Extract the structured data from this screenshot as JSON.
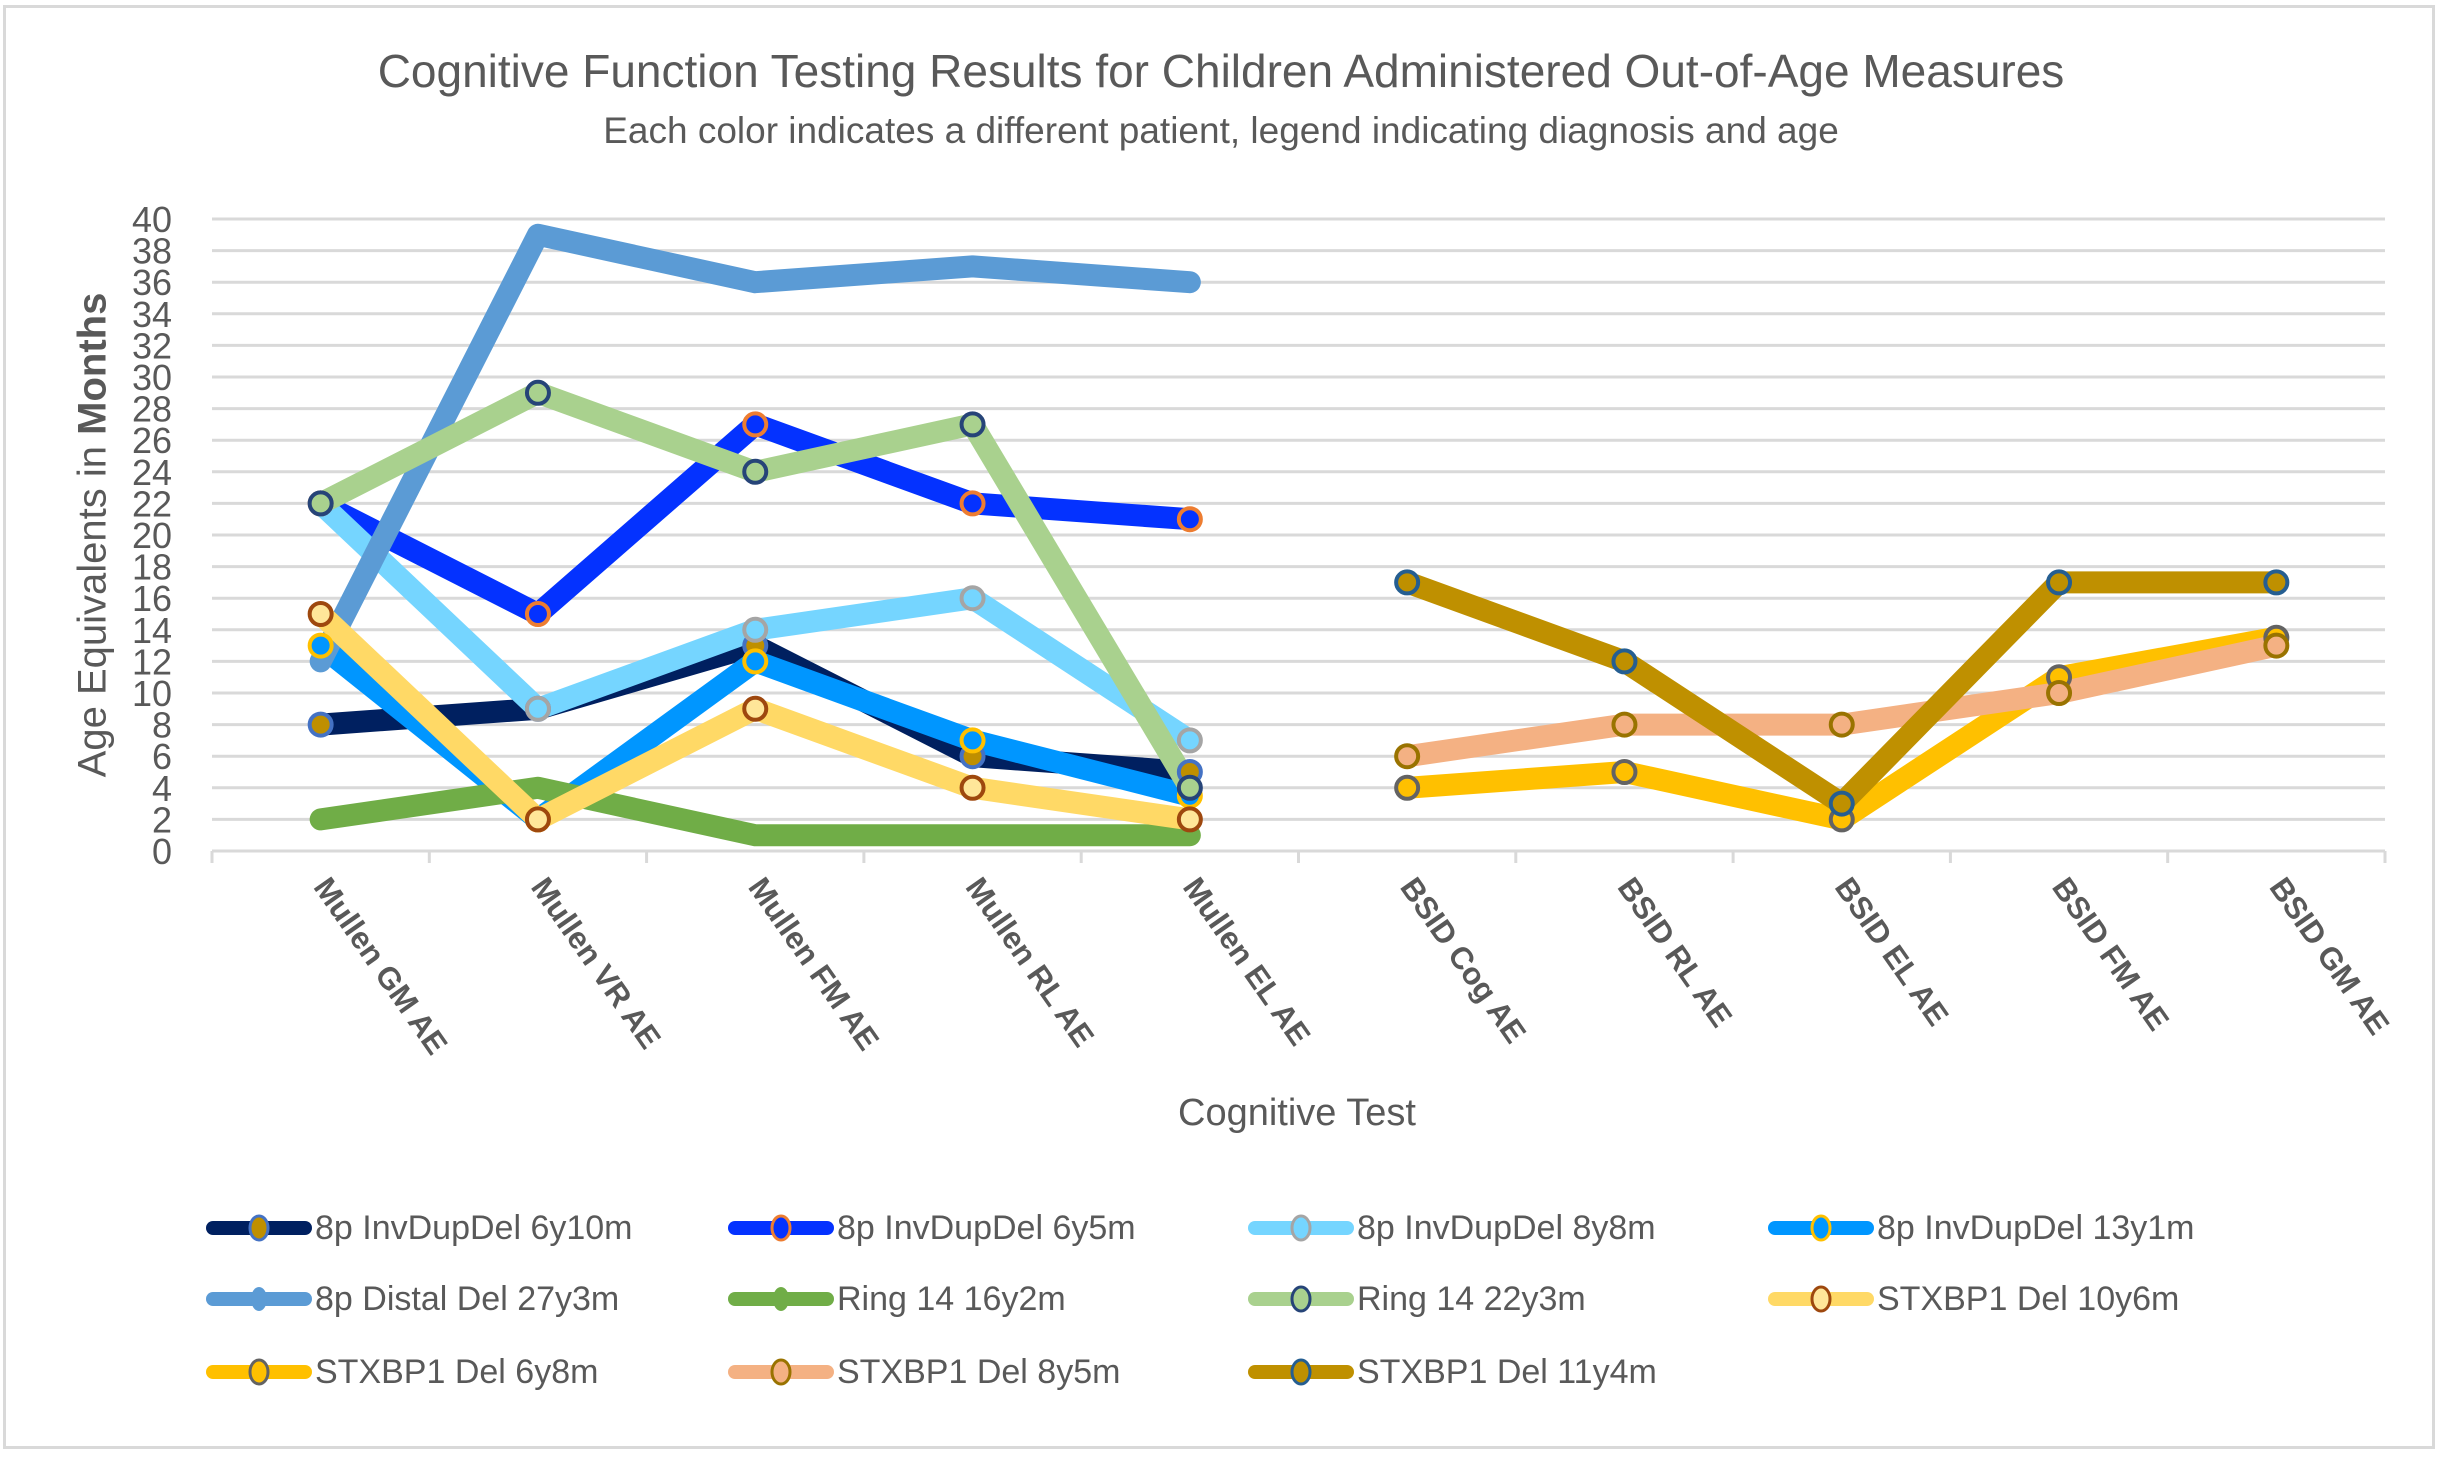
{
  "chart_data": {
    "type": "line",
    "title": "Cognitive Function Testing Results for Children Administered Out-of-Age Measures",
    "subtitle": "Each color indicates a different patient, legend indicating diagnosis and age",
    "xlabel": "Cognitive Test",
    "ylabel_prefix": "Age Equivalents in ",
    "ylabel_bold": "Months",
    "ylim": [
      0,
      40
    ],
    "yticks": [
      "0",
      "2",
      "4",
      "6",
      "8",
      "10",
      "12",
      "14",
      "16",
      "18",
      "20",
      "22",
      "24",
      "26",
      "28",
      "30",
      "32",
      "34",
      "36",
      "38",
      "40"
    ],
    "ytick_step": 2,
    "grid": true,
    "legend_position": "bottom",
    "categories": [
      "Mullen GM AE",
      "Mullen VR AE",
      "Mullen FM AE",
      "Mullen RL AE",
      "Mullen EL AE",
      "BSID Cog AE",
      "BSID RL AE",
      "BSID EL AE",
      "BSID FM AE",
      "BSID GM AE"
    ],
    "series": [
      {
        "name": "8p InvDupDel 6y10m",
        "color": "#002060",
        "marker_fill": "#bf8f00",
        "marker_stroke": "#4472c4",
        "marker": true,
        "values": [
          8,
          9,
          13,
          6,
          5,
          null,
          null,
          null,
          null,
          null
        ]
      },
      {
        "name": "8p InvDupDel 6y5m",
        "color": "#0432ff",
        "marker_fill": "#0432ff",
        "marker_stroke": "#ed7d31",
        "marker": true,
        "values": [
          22,
          15,
          27,
          22,
          21,
          null,
          null,
          null,
          null,
          null
        ]
      },
      {
        "name": "8p InvDupDel 8y8m",
        "color": "#75d5ff",
        "marker_fill": "#75d5ff",
        "marker_stroke": "#a5a5a5",
        "marker": true,
        "values": [
          22,
          9,
          14,
          16,
          7,
          null,
          null,
          null,
          null,
          null
        ]
      },
      {
        "name": "8p InvDupDel 13y1m",
        "color": "#0096ff",
        "marker_fill": "#0096ff",
        "marker_stroke": "#ffc000",
        "marker": true,
        "values": [
          13,
          2,
          12,
          7,
          3.5,
          null,
          null,
          null,
          null,
          null
        ]
      },
      {
        "name": "8p Distal Del 27y3m",
        "color": "#5b9bd5",
        "marker_fill": "#5b9bd5",
        "marker_stroke": "#5b9bd5",
        "marker": false,
        "values": [
          12,
          39,
          36,
          37,
          36,
          null,
          null,
          null,
          null,
          null
        ]
      },
      {
        "name": "Ring 14 16y2m",
        "color": "#70ad47",
        "marker_fill": "#70ad47",
        "marker_stroke": "#70ad47",
        "marker": false,
        "values": [
          2,
          4,
          1,
          1,
          1,
          null,
          null,
          null,
          null,
          null
        ]
      },
      {
        "name": "Ring 14 22y3m",
        "color": "#a9d18e",
        "marker_fill": "#a9d18e",
        "marker_stroke": "#264478",
        "marker": true,
        "values": [
          22,
          29,
          24,
          27,
          4,
          null,
          null,
          null,
          null,
          null
        ]
      },
      {
        "name": "STXBP1 Del 10y6m",
        "color": "#ffd966",
        "marker_fill": "#ffe699",
        "marker_stroke": "#9e480e",
        "marker": true,
        "values": [
          15,
          2,
          9,
          4,
          2,
          null,
          null,
          null,
          null,
          null
        ]
      },
      {
        "name": "STXBP1 Del 6y8m",
        "color": "#ffc000",
        "marker_fill": "#ffc000",
        "marker_stroke": "#636363",
        "marker": true,
        "values": [
          null,
          null,
          null,
          null,
          null,
          4,
          5,
          2,
          11,
          13.5
        ]
      },
      {
        "name": "STXBP1 Del 8y5m",
        "color": "#f4b183",
        "marker_fill": "#f4b183",
        "marker_stroke": "#997300",
        "marker": true,
        "values": [
          null,
          null,
          null,
          null,
          null,
          6,
          8,
          8,
          10,
          13
        ]
      },
      {
        "name": "STXBP1 Del 11y4m",
        "color": "#bf9000",
        "marker_fill": "#bf9000",
        "marker_stroke": "#255e91",
        "marker": true,
        "values": [
          null,
          null,
          null,
          null,
          null,
          17,
          12,
          3,
          17,
          17
        ]
      }
    ]
  }
}
